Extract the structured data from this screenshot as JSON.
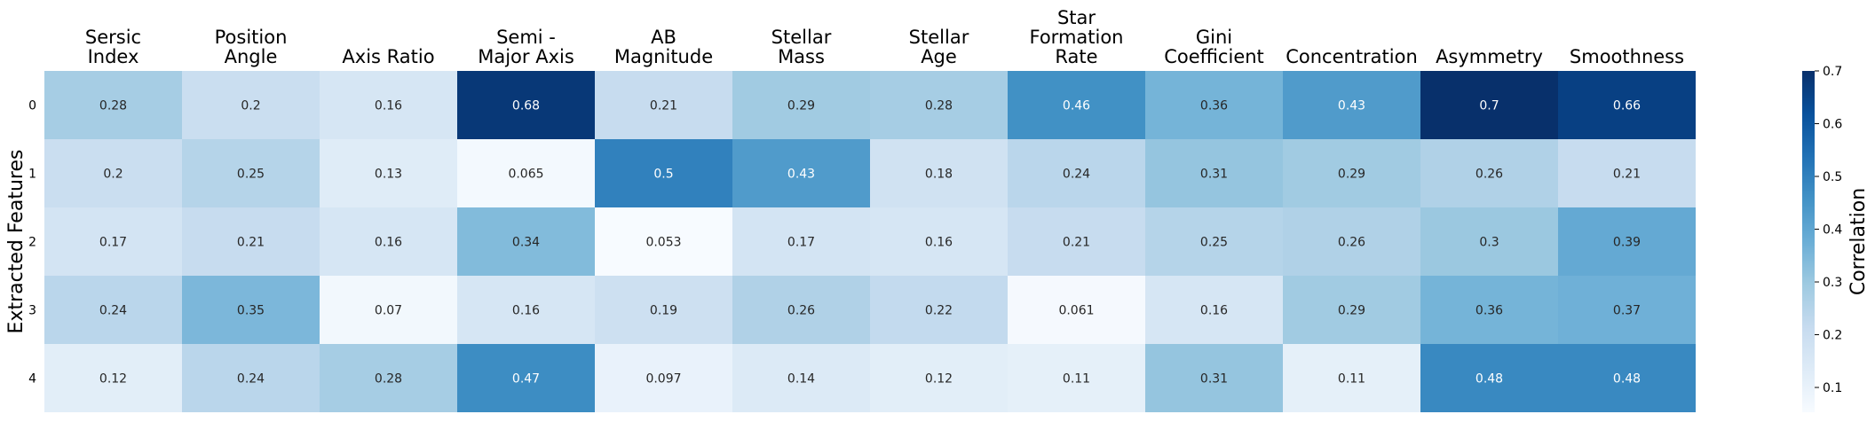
{
  "chart_data": {
    "type": "heatmap",
    "title": "",
    "xlabel": "",
    "ylabel": "Extracted Features",
    "columns": [
      [
        "Sersic",
        "Index"
      ],
      [
        "Position",
        "Angle"
      ],
      [
        "Axis Ratio"
      ],
      [
        "Semi -",
        "Major Axis"
      ],
      [
        "AB",
        "Magnitude"
      ],
      [
        "Stellar",
        "Mass"
      ],
      [
        "Stellar",
        "Age"
      ],
      [
        "Star",
        "Formation",
        "Rate"
      ],
      [
        "Gini",
        "Coefficient"
      ],
      [
        "Concentration"
      ],
      [
        "Asymmetry"
      ],
      [
        "Smoothness"
      ]
    ],
    "rows": [
      "0",
      "1",
      "2",
      "3",
      "4"
    ],
    "values": [
      [
        0.28,
        0.2,
        0.16,
        0.68,
        0.21,
        0.29,
        0.28,
        0.46,
        0.36,
        0.43,
        0.7,
        0.66
      ],
      [
        0.2,
        0.25,
        0.13,
        0.065,
        0.5,
        0.43,
        0.18,
        0.24,
        0.31,
        0.29,
        0.26,
        0.21
      ],
      [
        0.17,
        0.21,
        0.16,
        0.34,
        0.053,
        0.17,
        0.16,
        0.21,
        0.25,
        0.26,
        0.3,
        0.39
      ],
      [
        0.24,
        0.35,
        0.07,
        0.16,
        0.19,
        0.26,
        0.22,
        0.061,
        0.16,
        0.29,
        0.36,
        0.37
      ],
      [
        0.12,
        0.24,
        0.28,
        0.47,
        0.097,
        0.14,
        0.12,
        0.11,
        0.31,
        0.11,
        0.48,
        0.48
      ]
    ],
    "colorbar": {
      "label": "Correlation",
      "range": [
        0.053,
        0.7
      ],
      "ticks": [
        "0.1",
        "0.2",
        "0.3",
        "0.4",
        "0.5",
        "0.6",
        "0.7"
      ],
      "colormap": "Blues"
    },
    "grid": false
  }
}
